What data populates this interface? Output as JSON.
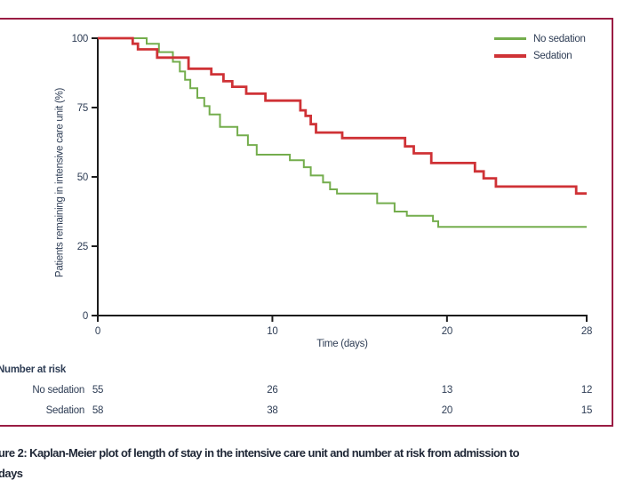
{
  "colors": {
    "green": "#74ad4d",
    "red": "#cf3236",
    "frame": "#9a1c43",
    "text": "#2e3d55",
    "caption_text": "#1f2736",
    "axis": "#1c1c1c"
  },
  "chart_data": {
    "type": "line",
    "subtype": "kaplan-meier-step",
    "title": "",
    "xlabel": "Time (days)",
    "ylabel": "Patients remaining in intensive care unit (%)",
    "xlim": [
      0,
      28
    ],
    "ylim": [
      0,
      100
    ],
    "x_ticks": [
      0,
      10,
      20,
      28
    ],
    "y_ticks": [
      0,
      25,
      50,
      75,
      100
    ],
    "grid": false,
    "legend_position": "top-right",
    "series": [
      {
        "name": "No sedation",
        "color_key": "green",
        "start": 100,
        "steps": [
          [
            2.8,
            98
          ],
          [
            3.5,
            95
          ],
          [
            4.3,
            91.5
          ],
          [
            4.7,
            88
          ],
          [
            5.0,
            85
          ],
          [
            5.3,
            82
          ],
          [
            5.7,
            78.5
          ],
          [
            6.1,
            75.5
          ],
          [
            6.4,
            72.5
          ],
          [
            7.0,
            68
          ],
          [
            8.0,
            65
          ],
          [
            8.6,
            61.5
          ],
          [
            9.1,
            58
          ],
          [
            11.0,
            56
          ],
          [
            11.8,
            53.5
          ],
          [
            12.2,
            50.5
          ],
          [
            12.9,
            48
          ],
          [
            13.3,
            45.5
          ],
          [
            13.7,
            44
          ],
          [
            16.0,
            40.5
          ],
          [
            17.0,
            37.5
          ],
          [
            17.7,
            36
          ],
          [
            19.2,
            34
          ],
          [
            19.5,
            32
          ]
        ]
      },
      {
        "name": "Sedation",
        "color_key": "red",
        "start": 100,
        "steps": [
          [
            2.0,
            98
          ],
          [
            2.3,
            96
          ],
          [
            3.4,
            93
          ],
          [
            5.2,
            89
          ],
          [
            6.5,
            87
          ],
          [
            7.2,
            84.5
          ],
          [
            7.7,
            82.5
          ],
          [
            8.5,
            80
          ],
          [
            9.6,
            77.5
          ],
          [
            11.6,
            74
          ],
          [
            11.9,
            72
          ],
          [
            12.2,
            69
          ],
          [
            12.5,
            66
          ],
          [
            14.0,
            64
          ],
          [
            17.6,
            61
          ],
          [
            18.1,
            58.5
          ],
          [
            19.1,
            55
          ],
          [
            21.6,
            52
          ],
          [
            22.1,
            49.5
          ],
          [
            22.8,
            46.5
          ],
          [
            27.4,
            44
          ]
        ]
      }
    ]
  },
  "risk_table": {
    "heading": "Number at risk",
    "times": [
      0,
      10,
      20,
      28
    ],
    "rows": [
      {
        "label": "No sedation",
        "values": [
          55,
          26,
          13,
          12
        ]
      },
      {
        "label": "Sedation",
        "values": [
          58,
          38,
          20,
          15
        ]
      }
    ]
  },
  "caption": {
    "line1": "ure 2: Kaplan-Meier plot of length of stay in the intensive care unit and number at risk from admission to",
    "line2": "days"
  }
}
